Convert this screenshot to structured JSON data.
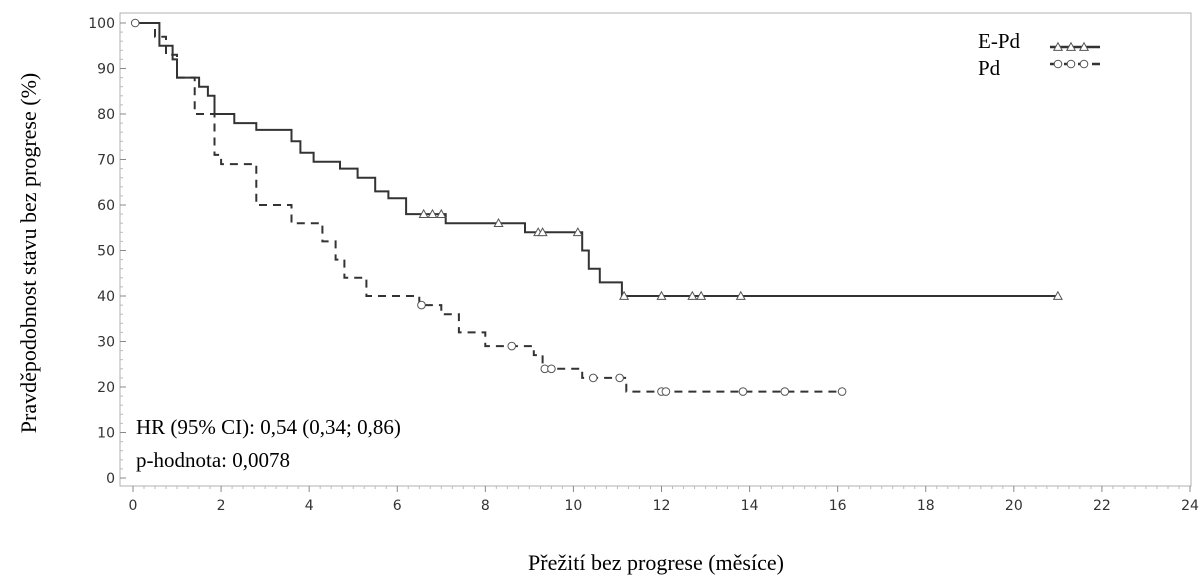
{
  "chart_data": {
    "type": "line",
    "subtype": "kaplan-meier",
    "xlabel": "Přežití bez progrese (měsíce)",
    "ylabel": "Pravděpodobnost stavu bez progrese (%)",
    "xlim": [
      0,
      24
    ],
    "ylim": [
      0,
      100
    ],
    "xticks": [
      "0",
      "2",
      "4",
      "6",
      "8",
      "10",
      "12",
      "14",
      "16",
      "18",
      "20",
      "22",
      "24"
    ],
    "yticks": [
      "0",
      "10",
      "20",
      "30",
      "40",
      "50",
      "60",
      "70",
      "80",
      "90",
      "100"
    ],
    "grid": false,
    "legend_position": "top-right",
    "annotations": [
      "HR (95% CI): 0,54 (0,34; 0,86)",
      "p-hodnota: 0,0078"
    ],
    "series": [
      {
        "name": "E-Pd",
        "line_style": "solid",
        "marker": "triangle",
        "color": "#333333",
        "x": [
          0,
          0.6,
          0.6,
          0.9,
          0.9,
          1.0,
          1.0,
          1.5,
          1.5,
          1.7,
          1.7,
          1.85,
          1.85,
          2.3,
          2.3,
          2.8,
          2.8,
          3.6,
          3.6,
          3.8,
          3.8,
          4.1,
          4.1,
          4.7,
          4.7,
          5.1,
          5.1,
          5.5,
          5.5,
          5.8,
          5.8,
          6.2,
          6.2,
          7.1,
          7.1,
          8.9,
          8.9,
          10.2,
          10.2,
          10.35,
          10.35,
          10.6,
          10.6,
          11.1,
          11.1,
          21.0
        ],
        "y": [
          100,
          100,
          95,
          95,
          92,
          92,
          88,
          88,
          86,
          86,
          84,
          84,
          80,
          80,
          78,
          78,
          76.5,
          76.5,
          74,
          74,
          71.5,
          71.5,
          69.5,
          69.5,
          68,
          68,
          66,
          66,
          63,
          63,
          61.5,
          61.5,
          58,
          58,
          56,
          56,
          54,
          54,
          50,
          50,
          46,
          46,
          43,
          43,
          40,
          40
        ],
        "censored_x": [
          6.6,
          6.8,
          7.0,
          8.3,
          9.2,
          9.3,
          10.1,
          11.15,
          12.0,
          12.7,
          12.9,
          13.8,
          21.0
        ],
        "censored_y": [
          58,
          58,
          58,
          56,
          54,
          54,
          54,
          40,
          40,
          40,
          40,
          40,
          40
        ]
      },
      {
        "name": "Pd",
        "line_style": "dashed",
        "marker": "circle",
        "color": "#333333",
        "x": [
          0,
          0.5,
          0.5,
          0.75,
          0.75,
          1.0,
          1.0,
          1.4,
          1.4,
          1.85,
          1.85,
          2.0,
          2.0,
          2.8,
          2.8,
          3.6,
          3.6,
          4.3,
          4.3,
          4.6,
          4.6,
          4.8,
          4.8,
          5.3,
          5.3,
          6.5,
          6.5,
          7.0,
          7.0,
          7.4,
          7.4,
          8.0,
          8.0,
          9.1,
          9.1,
          9.3,
          9.3,
          10.2,
          10.2,
          11.2,
          11.2,
          16.1
        ],
        "y": [
          100,
          100,
          97,
          97,
          93,
          93,
          88,
          88,
          80,
          80,
          71,
          71,
          69,
          69,
          60,
          60,
          56,
          56,
          52,
          52,
          48,
          48,
          44,
          44,
          40,
          40,
          38,
          38,
          36,
          36,
          32,
          32,
          29,
          29,
          27,
          27,
          24,
          24,
          22,
          22,
          19,
          19
        ],
        "censored_x": [
          0.05,
          6.55,
          8.6,
          9.35,
          9.5,
          10.45,
          11.05,
          12.0,
          12.1,
          13.85,
          14.8,
          16.1
        ],
        "censored_y": [
          100,
          38,
          29,
          24,
          24,
          22,
          22,
          19,
          19,
          19,
          19,
          19
        ]
      }
    ]
  }
}
